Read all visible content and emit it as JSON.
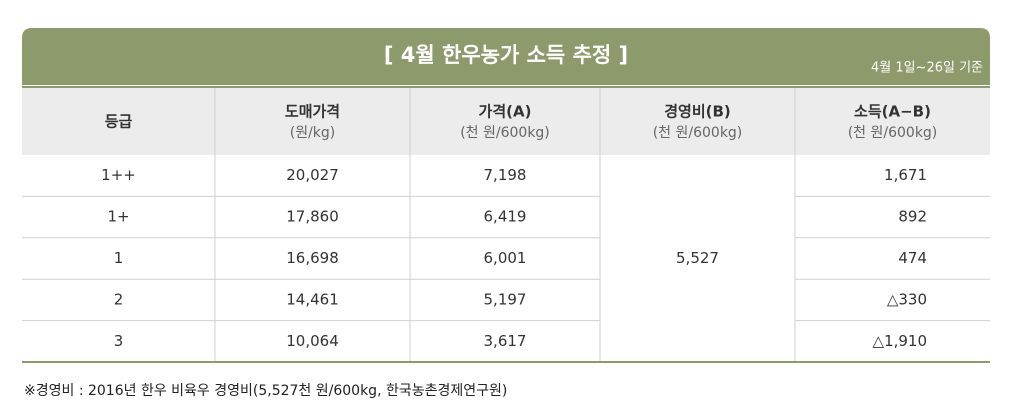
{
  "header": {
    "title": "[ 4월 한우농가 소득 추정 ]",
    "note": "4월 1일~26일 기준"
  },
  "table": {
    "columns": [
      {
        "title": "등급"
      },
      {
        "title": "도매가격",
        "unit": "(원/kg)"
      },
      {
        "title": "가격(A)",
        "unit": "(천 원/600kg)"
      },
      {
        "title": "경영비(B)",
        "unit": "(천 원/600kg)"
      },
      {
        "title": "소득(A−B)",
        "unit": "(천 원/600kg)"
      }
    ],
    "rows": [
      [
        "1++",
        "20,027",
        "7,198",
        "1,671"
      ],
      [
        "1+",
        "17,860",
        "6,419",
        "892"
      ],
      [
        "1",
        "16,698",
        "6,001",
        "474"
      ],
      [
        "2",
        "14,461",
        "5,197",
        "△330"
      ],
      [
        "3",
        "10,064",
        "3,617",
        "△1,910"
      ]
    ],
    "cost": "5,527"
  },
  "footnote": "※경영비 : 2016년 한우 비육우 경영비(5,527천 원/600kg, 한국농촌경제연구원)"
}
